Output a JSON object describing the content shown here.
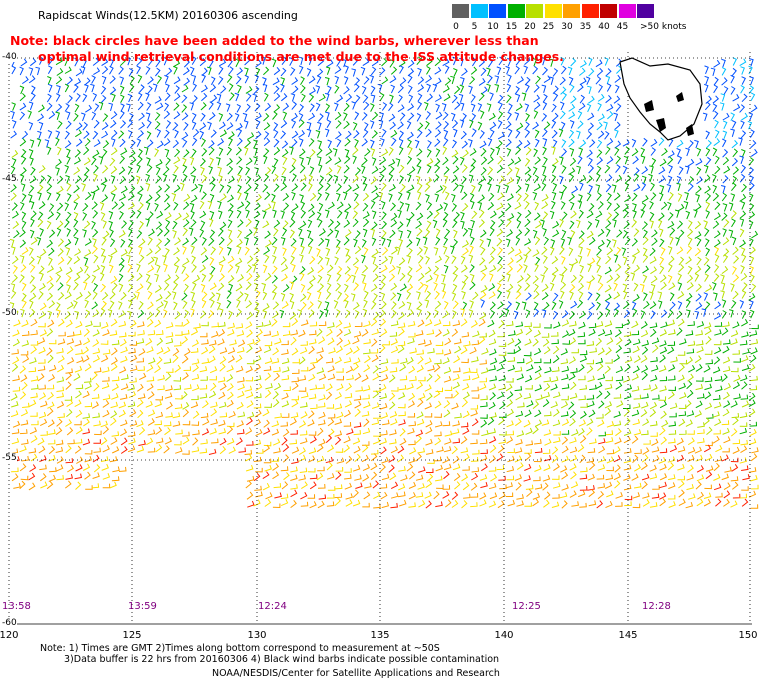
{
  "title": "Rapidscat Winds(12.5KM) 20160306 ascending",
  "note_line1": "Note: black circles have been added to the wind barbs, wherever less than",
  "note_line2": "optimal wind retrieval conditions are met due to the ISS attitude changes.",
  "colorbar": {
    "ticks": [
      "0",
      "5",
      "10",
      "15",
      "20",
      "25",
      "30",
      "35",
      "40",
      "45",
      ">50 knots"
    ],
    "colors": [
      "#606060",
      "#00c0ff",
      "#0050ff",
      "#00b000",
      "#b8e000",
      "#ffe000",
      "#ffa000",
      "#ff2000",
      "#c00000",
      "#e000e0",
      "#5000a0"
    ],
    "units": "knots"
  },
  "map": {
    "lon_range": [
      120,
      150
    ],
    "lat_range": [
      -40,
      -60
    ],
    "lon_ticks": [
      "120",
      "125",
      "130",
      "135",
      "140",
      "145",
      "150"
    ],
    "lat_ticks": [
      "-40",
      "-45",
      "-50",
      "-55",
      "-60"
    ],
    "grid": "dotted",
    "landmass": "Tasmania"
  },
  "pass_times": [
    "13:58",
    "13:59",
    "12:24",
    "12:25",
    "12:28"
  ],
  "footnote_line1": "Note: 1) Times are GMT 2)Times along bottom correspond to measurement at ~50S",
  "footnote_line2": "3)Data buffer is 22 hrs from 20160306 4) Black wind barbs indicate possible contamination",
  "credit": "NOAA/NESDIS/Center for Satellite Applications and Research"
}
